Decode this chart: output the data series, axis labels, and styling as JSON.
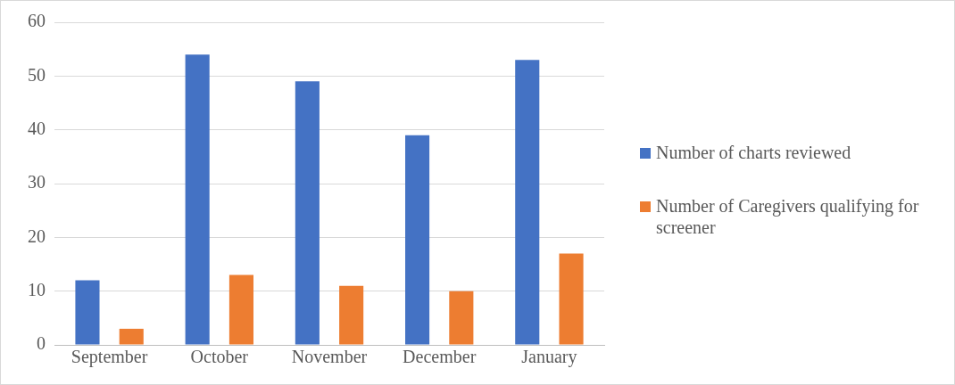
{
  "chart_data": {
    "type": "bar",
    "categories": [
      "September",
      "October",
      "November",
      "December",
      "January"
    ],
    "series": [
      {
        "name": "Number of charts reviewed",
        "color": "#4472c4",
        "values": [
          12,
          54,
          49,
          39,
          53
        ]
      },
      {
        "name": "Number of Caregivers qualifying for screener",
        "color": "#ed7d31",
        "values": [
          3,
          13,
          11,
          10,
          17
        ]
      }
    ],
    "ylim": [
      0,
      60
    ],
    "yticks": [
      0,
      10,
      20,
      30,
      40,
      50,
      60
    ],
    "grid": "y",
    "legend": "right"
  }
}
